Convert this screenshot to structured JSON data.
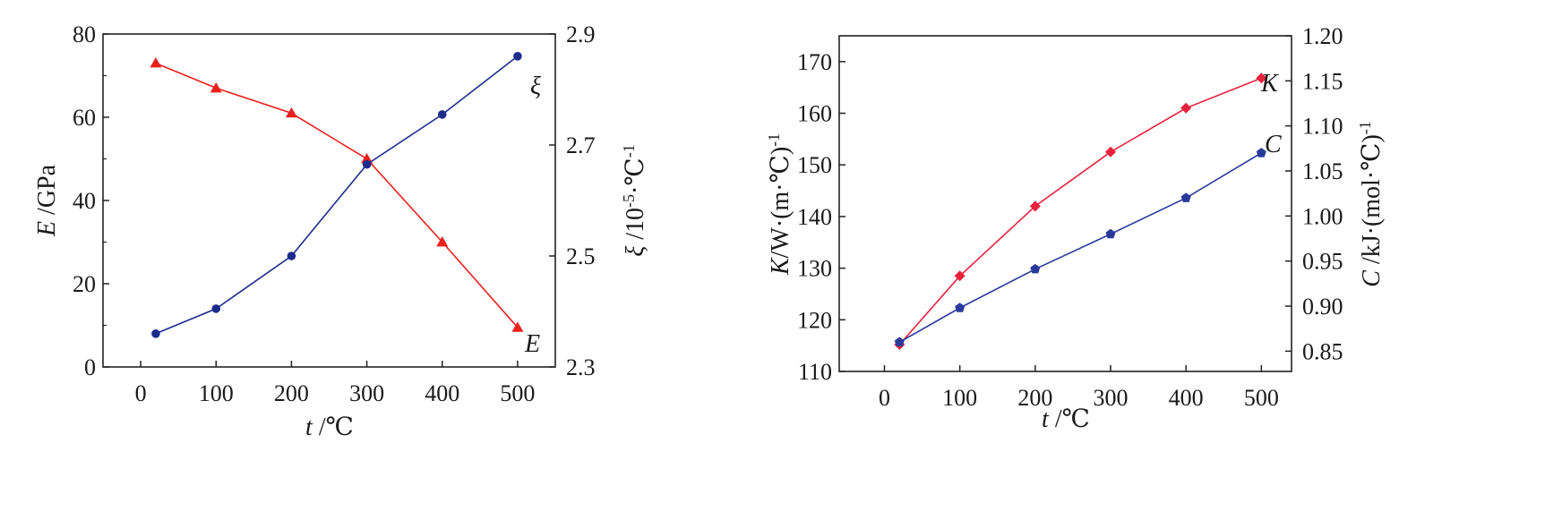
{
  "chart_data": [
    {
      "type": "line",
      "xlabel": "t /℃",
      "ylabel": "E /GPa",
      "y2label": "ξ /10-5·℃-1",
      "xlim": [
        -50,
        550
      ],
      "ylim": [
        0,
        80
      ],
      "y2lim": [
        2.3,
        2.9
      ],
      "xticks": [
        0,
        100,
        200,
        300,
        400,
        500
      ],
      "yticks": [
        0,
        20,
        40,
        60,
        80
      ],
      "y2ticks": [
        2.3,
        2.5,
        2.7,
        2.9
      ],
      "grid": false,
      "series": [
        {
          "name": "E",
          "axis": "left",
          "color": "#e8211c",
          "marker": "triangle",
          "x": [
            20,
            100,
            200,
            300,
            400,
            500
          ],
          "values": [
            73,
            67,
            61,
            50,
            30,
            9.5
          ]
        },
        {
          "name": "ξ",
          "axis": "right",
          "color": "#1c2c8c",
          "marker": "circle",
          "x": [
            20,
            100,
            200,
            300,
            400,
            500
          ],
          "values": [
            2.36,
            2.405,
            2.5,
            2.665,
            2.755,
            2.86
          ]
        }
      ]
    },
    {
      "type": "line",
      "xlabel": "t /℃",
      "ylabel": "K/W·(m·℃)-1",
      "y2label": "C /kJ·(mol·℃)-1",
      "xlim": [
        -60,
        540
      ],
      "ylim": [
        110,
        175
      ],
      "y2lim": [
        0.8275,
        1.2
      ],
      "xticks": [
        0,
        100,
        200,
        300,
        400,
        500
      ],
      "yticks": [
        110,
        120,
        130,
        140,
        150,
        160,
        170
      ],
      "y2ticks": [
        0.85,
        0.9,
        0.95,
        1.0,
        1.05,
        1.1,
        1.15,
        1.2
      ],
      "grid": false,
      "series": [
        {
          "name": "K",
          "axis": "left",
          "color": "#e8213c",
          "marker": "diamond",
          "x": [
            20,
            100,
            200,
            300,
            400,
            500
          ],
          "values": [
            115.2,
            128.5,
            142,
            152.5,
            161,
            166.8
          ]
        },
        {
          "name": "C",
          "axis": "right",
          "color": "#2a3a9c",
          "marker": "pentagon",
          "x": [
            20,
            100,
            200,
            300,
            400,
            500
          ],
          "values": [
            0.86,
            0.898,
            0.941,
            0.98,
            1.02,
            1.07
          ]
        }
      ]
    }
  ]
}
